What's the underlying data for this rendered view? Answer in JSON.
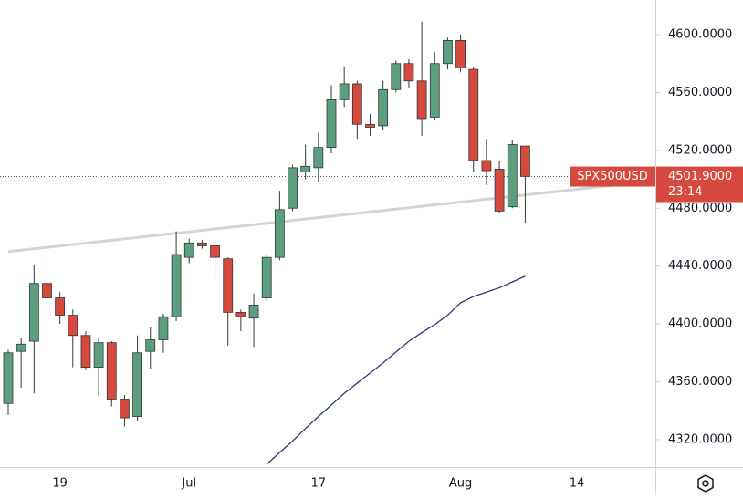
{
  "chart_data": {
    "type": "candlestick",
    "categories": [
      null,
      null,
      null,
      null,
      "19",
      null,
      null,
      null,
      null,
      null,
      null,
      null,
      null,
      null,
      "Jul",
      null,
      null,
      null,
      null,
      null,
      null,
      null,
      null,
      null,
      "17",
      null,
      null,
      null,
      null,
      null,
      null,
      null,
      null,
      null,
      null,
      "Aug",
      null,
      null,
      null,
      null,
      null,
      null,
      null,
      null,
      "14",
      null,
      null,
      null,
      null,
      null
    ],
    "series": [
      {
        "name": "SPX500USD",
        "up_color": "#5e9e80",
        "down_color": "#d6493f",
        "open": [
          4345,
          4381,
          4388,
          4428,
          4418,
          4406,
          4392,
          4370,
          4387,
          4348,
          4336,
          4381,
          4389,
          4405,
          4446,
          4456,
          4454,
          4445,
          4408,
          4404,
          4418,
          4446,
          4480,
          4505,
          4508,
          4522,
          4555,
          4566,
          4538,
          4537,
          4562,
          4580,
          4568,
          4543,
          4580,
          4596,
          4576,
          4513,
          4507,
          4481,
          4523,
          null,
          null,
          null,
          null,
          null,
          null,
          null,
          null,
          null
        ],
        "high": [
          4382,
          4390,
          4441,
          4451,
          4422,
          4410,
          4395,
          4390,
          4388,
          4351,
          4392,
          4398,
          4407,
          4464,
          4459,
          4458,
          4457,
          4446,
          4410,
          4421,
          4448,
          4492,
          4510,
          4524,
          4532,
          4565,
          4578,
          4568,
          4545,
          4568,
          4582,
          4583,
          4609,
          4588,
          4598,
          4600,
          4578,
          4528,
          4513,
          4527,
          4523,
          null,
          null,
          null,
          null,
          null,
          null,
          null,
          null,
          null
        ],
        "low": [
          4337,
          4356,
          4352,
          4408,
          4400,
          4370,
          4368,
          4350,
          4343,
          4329,
          4333,
          4369,
          4380,
          4402,
          4442,
          4452,
          4432,
          4385,
          4395,
          4384,
          4416,
          4444,
          4478,
          4500,
          4498,
          4518,
          4550,
          4528,
          4530,
          4534,
          4560,
          4563,
          4530,
          4541,
          4576,
          4574,
          4505,
          4496,
          4477,
          4480,
          4470,
          null,
          null,
          null,
          null,
          null,
          null,
          null,
          null,
          null
        ],
        "close": [
          4380,
          4386,
          4428,
          4418,
          4406,
          4392,
          4370,
          4387,
          4348,
          4335,
          4380,
          4389,
          4405,
          4448,
          4456,
          4454,
          4446,
          4408,
          4405,
          4413,
          4446,
          4479,
          4508,
          4509,
          4522,
          4555,
          4566,
          4538,
          4536,
          4562,
          4580,
          4568,
          4542,
          4580,
          4596,
          4577,
          4513,
          4506,
          4478,
          4524,
          4502,
          null,
          null,
          null,
          null,
          null,
          null,
          null,
          null,
          null
        ]
      },
      {
        "name": "MA",
        "color": "#2b3a78",
        "values": [
          null,
          null,
          null,
          null,
          null,
          null,
          null,
          null,
          null,
          null,
          null,
          null,
          null,
          null,
          null,
          null,
          null,
          null,
          null,
          null,
          4303,
          4311,
          4319,
          4327.6,
          4336,
          4344,
          4352,
          4359,
          4366,
          4373,
          4380.6,
          4388,
          4394,
          4399.5,
          4406,
          4414.6,
          4419,
          4422,
          4425,
          4429,
          4433,
          null,
          null,
          null,
          null,
          null,
          null,
          null,
          null,
          null
        ]
      }
    ],
    "trend_line": {
      "color": "#d4d4d4",
      "values": [
        4450,
        4498
      ]
    },
    "last_price": {
      "value": 4501.9,
      "label": "4501.9000"
    },
    "countdown": "23:14",
    "ylim": [
      4301,
      4624
    ],
    "yticks": [
      {
        "value": 4320,
        "label": "4320.0000"
      },
      {
        "value": 4360,
        "label": "4360.0000"
      },
      {
        "value": 4400,
        "label": "4400.0000"
      },
      {
        "value": 4440,
        "label": "4440.0000"
      },
      {
        "value": 4480,
        "label": "4480.0000"
      },
      {
        "value": 4520,
        "label": "4520.0000"
      },
      {
        "value": 4560,
        "label": "4560.0000"
      },
      {
        "value": 4600,
        "label": "4600.0000"
      }
    ]
  }
}
